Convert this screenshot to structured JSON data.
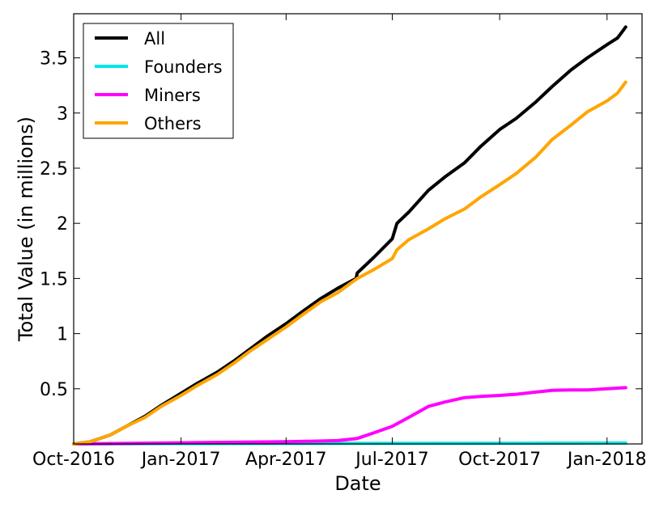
{
  "chart_data": {
    "type": "line",
    "title": "",
    "xlabel": "Date",
    "ylabel": "Total Value (in millions)",
    "x_axis_type": "date",
    "xlim": [
      "2016-10-01",
      "2018-01-31"
    ],
    "ylim": [
      0,
      3.9
    ],
    "xticks": [
      {
        "date": "2016-10-01",
        "label": "Oct-2016"
      },
      {
        "date": "2017-01-01",
        "label": "Jan-2017"
      },
      {
        "date": "2017-04-01",
        "label": "Apr-2017"
      },
      {
        "date": "2017-07-01",
        "label": "Jul-2017"
      },
      {
        "date": "2017-10-01",
        "label": "Oct-2017"
      },
      {
        "date": "2018-01-01",
        "label": "Jan-2018"
      }
    ],
    "yticks": [
      {
        "value": 0.5,
        "label": "0.5"
      },
      {
        "value": 1,
        "label": "1"
      },
      {
        "value": 1.5,
        "label": "1.5"
      },
      {
        "value": 2,
        "label": "2"
      },
      {
        "value": 2.5,
        "label": "2.5"
      },
      {
        "value": 3,
        "label": "3"
      },
      {
        "value": 3.5,
        "label": "3.5"
      }
    ],
    "grid": false,
    "legend_position": "top-left",
    "series": [
      {
        "name": "All",
        "color": "#000000",
        "points": [
          [
            "2016-10-01",
            0.0
          ],
          [
            "2016-10-15",
            0.02
          ],
          [
            "2016-11-01",
            0.08
          ],
          [
            "2016-11-15",
            0.16
          ],
          [
            "2016-12-01",
            0.25
          ],
          [
            "2016-12-15",
            0.35
          ],
          [
            "2017-01-01",
            0.46
          ],
          [
            "2017-01-15",
            0.55
          ],
          [
            "2017-02-01",
            0.65
          ],
          [
            "2017-02-15",
            0.75
          ],
          [
            "2017-03-01",
            0.86
          ],
          [
            "2017-03-15",
            0.97
          ],
          [
            "2017-04-01",
            1.09
          ],
          [
            "2017-04-15",
            1.2
          ],
          [
            "2017-05-01",
            1.32
          ],
          [
            "2017-05-15",
            1.41
          ],
          [
            "2017-05-31",
            1.5
          ],
          [
            "2017-06-01",
            1.55
          ],
          [
            "2017-06-15",
            1.69
          ],
          [
            "2017-07-01",
            1.86
          ],
          [
            "2017-07-05",
            2.0
          ],
          [
            "2017-07-15",
            2.1
          ],
          [
            "2017-08-01",
            2.3
          ],
          [
            "2017-08-15",
            2.42
          ],
          [
            "2017-09-01",
            2.55
          ],
          [
            "2017-09-15",
            2.7
          ],
          [
            "2017-10-01",
            2.85
          ],
          [
            "2017-10-15",
            2.95
          ],
          [
            "2017-11-01",
            3.1
          ],
          [
            "2017-11-15",
            3.24
          ],
          [
            "2017-12-01",
            3.39
          ],
          [
            "2017-12-15",
            3.5
          ],
          [
            "2018-01-01",
            3.62
          ],
          [
            "2018-01-10",
            3.68
          ],
          [
            "2018-01-17",
            3.78
          ]
        ]
      },
      {
        "name": "Founders",
        "color": "#00e5e5",
        "points": [
          [
            "2016-10-01",
            0.0
          ],
          [
            "2017-01-01",
            0.003
          ],
          [
            "2017-07-01",
            0.005
          ],
          [
            "2018-01-17",
            0.008
          ]
        ]
      },
      {
        "name": "Miners",
        "color": "#ff00ff",
        "points": [
          [
            "2016-10-01",
            0.0
          ],
          [
            "2017-01-01",
            0.01
          ],
          [
            "2017-04-01",
            0.02
          ],
          [
            "2017-05-15",
            0.03
          ],
          [
            "2017-06-01",
            0.05
          ],
          [
            "2017-06-15",
            0.1
          ],
          [
            "2017-07-01",
            0.16
          ],
          [
            "2017-07-15",
            0.24
          ],
          [
            "2017-08-01",
            0.34
          ],
          [
            "2017-08-15",
            0.38
          ],
          [
            "2017-09-01",
            0.42
          ],
          [
            "2017-09-15",
            0.43
          ],
          [
            "2017-10-01",
            0.44
          ],
          [
            "2017-10-15",
            0.45
          ],
          [
            "2017-11-01",
            0.47
          ],
          [
            "2017-11-15",
            0.485
          ],
          [
            "2017-12-01",
            0.49
          ],
          [
            "2017-12-15",
            0.49
          ],
          [
            "2018-01-01",
            0.5
          ],
          [
            "2018-01-17",
            0.51
          ]
        ]
      },
      {
        "name": "Others",
        "color": "#ffa500",
        "points": [
          [
            "2016-10-01",
            0.0
          ],
          [
            "2016-10-15",
            0.02
          ],
          [
            "2016-11-01",
            0.08
          ],
          [
            "2016-11-15",
            0.16
          ],
          [
            "2016-12-01",
            0.24
          ],
          [
            "2016-12-15",
            0.34
          ],
          [
            "2017-01-01",
            0.44
          ],
          [
            "2017-01-15",
            0.53
          ],
          [
            "2017-02-01",
            0.63
          ],
          [
            "2017-02-15",
            0.73
          ],
          [
            "2017-03-01",
            0.84
          ],
          [
            "2017-03-15",
            0.94
          ],
          [
            "2017-04-01",
            1.06
          ],
          [
            "2017-04-15",
            1.17
          ],
          [
            "2017-05-01",
            1.29
          ],
          [
            "2017-05-15",
            1.37
          ],
          [
            "2017-06-01",
            1.5
          ],
          [
            "2017-06-15",
            1.58
          ],
          [
            "2017-07-01",
            1.68
          ],
          [
            "2017-07-05",
            1.76
          ],
          [
            "2017-07-15",
            1.85
          ],
          [
            "2017-08-01",
            1.95
          ],
          [
            "2017-08-15",
            2.04
          ],
          [
            "2017-09-01",
            2.13
          ],
          [
            "2017-09-15",
            2.24
          ],
          [
            "2017-10-01",
            2.35
          ],
          [
            "2017-10-15",
            2.45
          ],
          [
            "2017-11-01",
            2.6
          ],
          [
            "2017-11-15",
            2.76
          ],
          [
            "2017-12-01",
            2.89
          ],
          [
            "2017-12-15",
            3.01
          ],
          [
            "2018-01-01",
            3.11
          ],
          [
            "2018-01-10",
            3.18
          ],
          [
            "2018-01-17",
            3.28
          ]
        ]
      }
    ]
  }
}
